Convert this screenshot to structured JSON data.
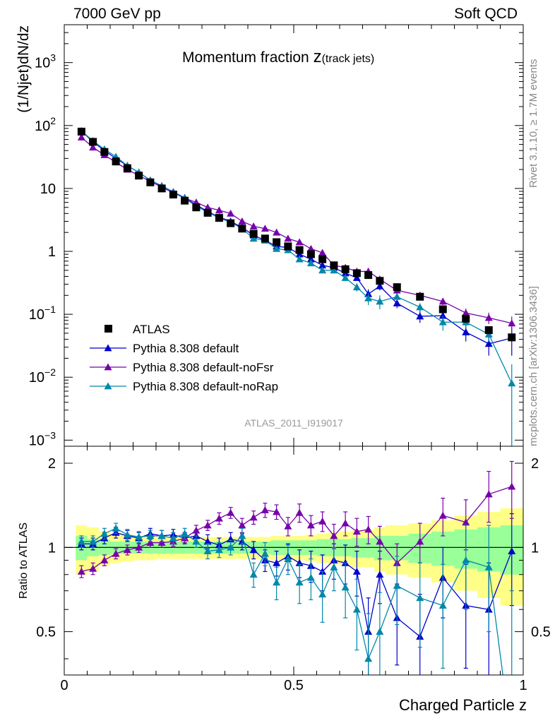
{
  "header": {
    "left": "7000 GeV pp",
    "right": "Soft QCD"
  },
  "side_labels": {
    "rivet": "Rivet 3.1.10, ≥ 1.7M events",
    "mcplots": "mcplots.cern.ch [arXiv:1306.3436]"
  },
  "colors": {
    "atlas": "#000000",
    "default": "#0000cc",
    "noFsr": "#7700aa",
    "noRap": "#0088aa",
    "band_outer": "#ffff88",
    "band_inner": "#99ff99",
    "watermark": "#999999"
  },
  "chart_data": [
    {
      "type": "scatter",
      "title_main": "Momentum fraction",
      "title_var": "z",
      "title_sub": "(track jets)",
      "ylabel": "(1/Njet)dN/dz",
      "yscale": "log",
      "ylim": [
        0.0008,
        4000
      ],
      "xlim": [
        0,
        1
      ],
      "yticks": [
        {
          "v": 0.001,
          "base": "10",
          "exp": "−3"
        },
        {
          "v": 0.01,
          "base": "10",
          "exp": "−2"
        },
        {
          "v": 0.1,
          "base": "10",
          "exp": "−1"
        },
        {
          "v": 1,
          "base": "1",
          "exp": ""
        },
        {
          "v": 10,
          "base": "10",
          "exp": ""
        },
        {
          "v": 100,
          "base": "10",
          "exp": "2"
        },
        {
          "v": 1000,
          "base": "10",
          "exp": "3"
        }
      ],
      "watermark": "ATLAS_2011_I919017",
      "legend_position": "bottom-left",
      "x": [
        0.0375,
        0.0625,
        0.0875,
        0.1125,
        0.1375,
        0.1625,
        0.1875,
        0.2125,
        0.2375,
        0.2625,
        0.2875,
        0.3125,
        0.3375,
        0.3625,
        0.3875,
        0.4125,
        0.4375,
        0.4625,
        0.4875,
        0.5125,
        0.5375,
        0.5625,
        0.5875,
        0.6125,
        0.6375,
        0.6625,
        0.6875,
        0.725,
        0.775,
        0.825,
        0.875,
        0.925,
        0.975
      ],
      "series": [
        {
          "name": "ATLAS",
          "color": "#000000",
          "marker": "square",
          "values": [
            80,
            55,
            38,
            27,
            21,
            16,
            12.5,
            10,
            8.0,
            6.4,
            5.0,
            4.1,
            3.4,
            2.8,
            2.3,
            1.9,
            1.6,
            1.4,
            1.2,
            1.05,
            0.9,
            0.75,
            0.6,
            0.52,
            0.45,
            0.42,
            0.34,
            0.27,
            0.19,
            0.12,
            0.085,
            0.056,
            0.043
          ]
        },
        {
          "name": "Pythia 8.308 default",
          "color": "#0000cc",
          "marker": "triangle",
          "values": [
            82,
            55,
            40,
            30,
            23,
            18,
            13.5,
            11,
            8.8,
            7.1,
            5.5,
            4.3,
            3.5,
            3.0,
            2.4,
            1.8,
            1.5,
            1.2,
            1.15,
            0.9,
            0.75,
            0.6,
            0.55,
            0.45,
            0.38,
            0.21,
            0.28,
            0.15,
            0.093,
            0.095,
            0.052,
            0.034,
            0.042
          ],
          "errors": [
            2,
            2,
            1.5,
            1,
            0.8,
            0.6,
            0.5,
            0.4,
            0.3,
            0.25,
            0.2,
            0.17,
            0.14,
            0.12,
            0.1,
            0.08,
            0.08,
            0.06,
            0.06,
            0.05,
            0.05,
            0.04,
            0.04,
            0.04,
            0.04,
            0.04,
            0.04,
            0.025,
            0.02,
            0.02,
            0.015,
            0.012,
            0.02
          ]
        },
        {
          "name": "Pythia 8.308 default-noFsr",
          "color": "#7700aa",
          "marker": "triangle",
          "values": [
            65,
            45,
            34,
            26,
            20,
            16,
            13,
            10.5,
            8.5,
            7.0,
            6.0,
            5.0,
            4.5,
            4.0,
            3.0,
            2.5,
            2.3,
            2.0,
            1.6,
            1.4,
            1.1,
            0.95,
            0.6,
            0.55,
            0.48,
            0.48,
            0.36,
            0.24,
            0.2,
            0.16,
            0.105,
            0.088,
            0.072
          ],
          "errors": [
            2,
            1.5,
            1.2,
            0.9,
            0.7,
            0.5,
            0.45,
            0.35,
            0.3,
            0.25,
            0.2,
            0.17,
            0.15,
            0.13,
            0.1,
            0.09,
            0.08,
            0.07,
            0.06,
            0.06,
            0.05,
            0.05,
            0.04,
            0.04,
            0.04,
            0.04,
            0.04,
            0.025,
            0.02,
            0.02,
            0.018,
            0.018,
            0.02
          ]
        },
        {
          "name": "Pythia 8.308 default-noRap",
          "color": "#0088aa",
          "marker": "triangle",
          "values": [
            82,
            57,
            42,
            32,
            23,
            18,
            13.5,
            11,
            8.6,
            7.0,
            5.2,
            4.2,
            3.4,
            2.9,
            2.3,
            1.6,
            1.5,
            1.1,
            1.05,
            0.75,
            0.65,
            0.5,
            0.5,
            0.38,
            0.27,
            0.18,
            0.16,
            0.19,
            0.13,
            0.075,
            0.075,
            0.048,
            0.008
          ],
          "errors": [
            2,
            2,
            1.5,
            1,
            0.8,
            0.6,
            0.5,
            0.4,
            0.3,
            0.25,
            0.2,
            0.17,
            0.14,
            0.12,
            0.1,
            0.08,
            0.08,
            0.06,
            0.06,
            0.05,
            0.05,
            0.04,
            0.04,
            0.04,
            0.04,
            0.04,
            0.04,
            0.025,
            0.02,
            0.02,
            0.015,
            0.012,
            0.008
          ]
        }
      ]
    },
    {
      "type": "line",
      "ylabel": "Ratio to ATLAS",
      "xlabel": "Charged Particle z",
      "yscale": "log",
      "ylim": [
        0.35,
        2.3
      ],
      "xlim": [
        0,
        1
      ],
      "yticks": [
        {
          "v": 0.5,
          "label": "0.5"
        },
        {
          "v": 1,
          "label": "1"
        },
        {
          "v": 2,
          "label": "2"
        }
      ],
      "xticks": [
        {
          "v": 0,
          "label": "0"
        },
        {
          "v": 0.5,
          "label": "0.5"
        },
        {
          "v": 1,
          "label": "1"
        }
      ],
      "bin_edges": [
        0.025,
        0.05,
        0.075,
        0.1,
        0.125,
        0.15,
        0.175,
        0.2,
        0.225,
        0.25,
        0.275,
        0.3,
        0.325,
        0.35,
        0.375,
        0.4,
        0.425,
        0.45,
        0.475,
        0.5,
        0.525,
        0.55,
        0.575,
        0.6,
        0.625,
        0.65,
        0.675,
        0.7,
        0.75,
        0.8,
        0.85,
        0.9,
        0.95,
        1.0
      ],
      "band_inner": [
        0.1,
        0.07,
        0.06,
        0.05,
        0.05,
        0.05,
        0.05,
        0.05,
        0.05,
        0.05,
        0.05,
        0.05,
        0.05,
        0.05,
        0.05,
        0.05,
        0.05,
        0.06,
        0.06,
        0.06,
        0.06,
        0.07,
        0.07,
        0.07,
        0.08,
        0.08,
        0.1,
        0.1,
        0.12,
        0.14,
        0.16,
        0.18,
        0.2
      ],
      "band_outer": [
        0.2,
        0.18,
        0.14,
        0.12,
        0.11,
        0.1,
        0.1,
        0.09,
        0.09,
        0.09,
        0.09,
        0.09,
        0.09,
        0.09,
        0.09,
        0.09,
        0.09,
        0.1,
        0.1,
        0.1,
        0.11,
        0.12,
        0.13,
        0.14,
        0.15,
        0.15,
        0.18,
        0.2,
        0.22,
        0.25,
        0.3,
        0.34,
        0.38
      ],
      "x": [
        0.0375,
        0.0625,
        0.0875,
        0.1125,
        0.1375,
        0.1625,
        0.1875,
        0.2125,
        0.2375,
        0.2625,
        0.2875,
        0.3125,
        0.3375,
        0.3625,
        0.3875,
        0.4125,
        0.4375,
        0.4625,
        0.4875,
        0.5125,
        0.5375,
        0.5625,
        0.5875,
        0.6125,
        0.6375,
        0.6625,
        0.6875,
        0.725,
        0.775,
        0.825,
        0.875,
        0.925,
        0.975
      ],
      "series": [
        {
          "name": "Pythia 8.308 default",
          "color": "#0000cc",
          "values": [
            1.03,
            1.03,
            1.08,
            1.13,
            1.1,
            1.08,
            1.12,
            1.1,
            1.11,
            1.08,
            1.1,
            1.05,
            1.02,
            1.07,
            1.05,
            0.98,
            0.9,
            0.88,
            0.93,
            0.88,
            0.86,
            0.82,
            0.9,
            0.88,
            0.82,
            0.5,
            0.8,
            0.56,
            0.48,
            0.78,
            0.62,
            0.6,
            0.97
          ],
          "errors": [
            0.05,
            0.05,
            0.05,
            0.05,
            0.05,
            0.05,
            0.05,
            0.05,
            0.05,
            0.05,
            0.05,
            0.06,
            0.06,
            0.06,
            0.07,
            0.07,
            0.08,
            0.09,
            0.1,
            0.1,
            0.11,
            0.12,
            0.13,
            0.14,
            0.15,
            0.16,
            0.17,
            0.18,
            0.2,
            0.22,
            0.25,
            0.28,
            0.35
          ]
        },
        {
          "name": "Pythia 8.308 default-noFsr",
          "color": "#7700aa",
          "values": [
            0.82,
            0.84,
            0.9,
            0.95,
            0.98,
            1.0,
            1.04,
            1.04,
            1.05,
            1.08,
            1.15,
            1.2,
            1.27,
            1.33,
            1.2,
            1.28,
            1.36,
            1.34,
            1.19,
            1.33,
            1.2,
            1.24,
            1.1,
            1.22,
            1.14,
            1.16,
            1.05,
            0.88,
            1.05,
            1.3,
            1.23,
            1.55,
            1.65
          ],
          "errors": [
            0.04,
            0.04,
            0.04,
            0.04,
            0.04,
            0.04,
            0.04,
            0.04,
            0.04,
            0.04,
            0.05,
            0.05,
            0.06,
            0.06,
            0.07,
            0.07,
            0.08,
            0.08,
            0.09,
            0.1,
            0.1,
            0.1,
            0.11,
            0.12,
            0.13,
            0.13,
            0.14,
            0.15,
            0.17,
            0.2,
            0.25,
            0.32,
            0.38
          ]
        },
        {
          "name": "Pythia 8.308 default-noRap",
          "color": "#0088aa",
          "values": [
            1.05,
            1.05,
            1.12,
            1.17,
            1.11,
            1.09,
            1.1,
            1.1,
            1.08,
            1.12,
            1.05,
            0.97,
            0.98,
            1.0,
            1.1,
            0.8,
            0.95,
            0.75,
            0.91,
            0.75,
            0.78,
            0.68,
            0.85,
            0.72,
            0.6,
            0.4,
            0.5,
            0.73,
            0.66,
            0.62,
            0.9,
            0.85,
            0.2
          ],
          "errors": [
            0.05,
            0.05,
            0.05,
            0.05,
            0.05,
            0.05,
            0.05,
            0.05,
            0.05,
            0.05,
            0.05,
            0.06,
            0.06,
            0.06,
            0.07,
            0.08,
            0.09,
            0.1,
            0.11,
            0.12,
            0.13,
            0.14,
            0.15,
            0.16,
            0.17,
            0.18,
            0.19,
            0.2,
            0.22,
            0.25,
            0.3,
            0.35,
            0.5
          ]
        }
      ]
    }
  ]
}
